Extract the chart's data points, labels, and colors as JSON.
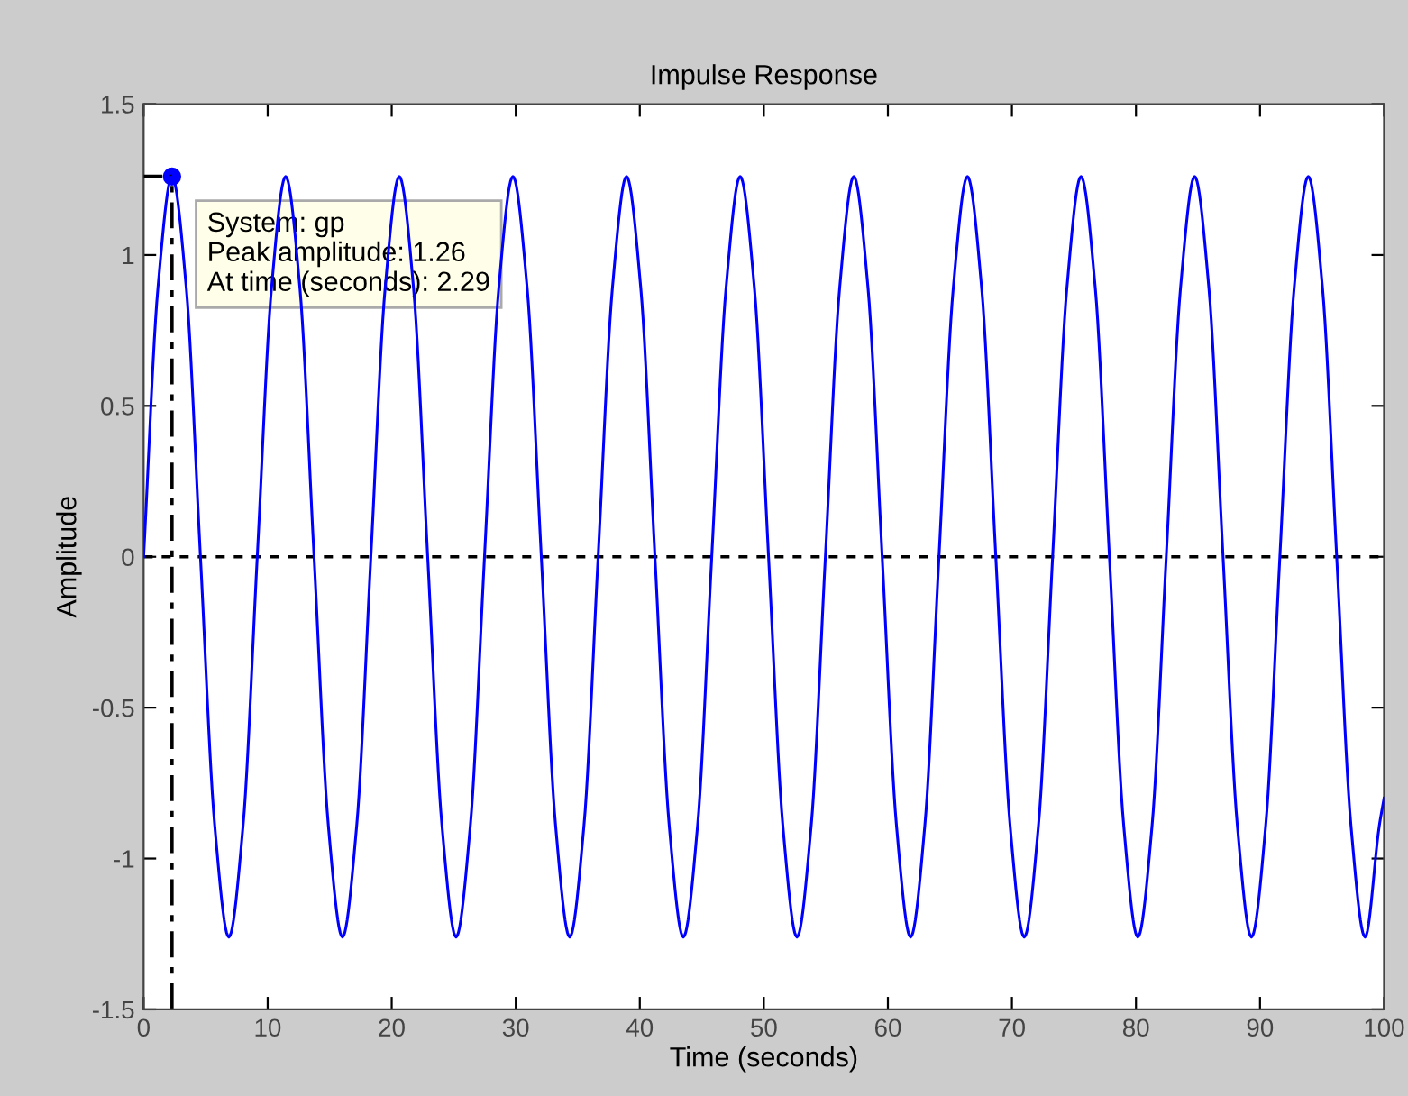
{
  "chart_data": {
    "type": "line",
    "title": "Impulse Response",
    "xlabel": "Time (seconds)",
    "ylabel": "Amplitude",
    "xlim": [
      0,
      100
    ],
    "xticks": [
      0,
      10,
      20,
      30,
      40,
      50,
      60,
      70,
      80,
      90,
      100
    ],
    "ylim": [
      -1.5,
      1.5
    ],
    "yticks": [
      -1.5,
      -1,
      -0.5,
      0,
      0.5,
      1,
      1.5
    ],
    "grid": false,
    "legend": false,
    "series": [
      {
        "color": "#0000ff",
        "x": [
          0,
          1.15,
          2.29,
          3.44,
          4.58,
          5.73,
          6.87,
          8.02,
          9.16,
          10.31,
          11.45,
          12.6,
          13.74,
          14.89,
          16.03,
          17.18,
          18.32,
          19.47,
          20.61,
          21.76,
          22.9,
          24.05,
          25.19,
          26.34,
          27.48,
          28.63,
          29.77,
          30.92,
          32.06,
          33.21,
          34.35,
          35.5,
          36.64,
          37.79,
          38.93,
          40.08,
          41.22,
          42.37,
          43.51,
          44.66,
          45.8,
          46.95,
          48.09,
          49.24,
          50.38,
          51.53,
          52.67,
          53.82,
          54.96,
          56.11,
          57.25,
          58.4,
          59.54,
          60.69,
          61.83,
          62.98,
          64.12,
          65.27,
          66.41,
          67.56,
          68.7,
          69.85,
          70.99,
          72.14,
          73.28,
          74.43,
          75.57,
          76.72,
          77.86,
          79.01,
          80.15,
          81.3,
          82.44,
          83.59,
          84.73,
          85.88,
          87.02,
          88.17,
          89.31,
          90.46,
          91.6,
          92.75,
          93.89,
          95.04,
          96.18,
          97.33,
          98.47,
          99.62,
          100
        ],
        "values": [
          0,
          0.89,
          1.26,
          0.89,
          0,
          -0.89,
          -1.26,
          -0.89,
          0,
          0.89,
          1.26,
          0.89,
          0,
          -0.89,
          -1.26,
          -0.89,
          0,
          0.89,
          1.26,
          0.89,
          0,
          -0.89,
          -1.26,
          -0.89,
          0,
          0.89,
          1.26,
          0.89,
          0,
          -0.89,
          -1.26,
          -0.89,
          0,
          0.89,
          1.26,
          0.89,
          0,
          -0.89,
          -1.26,
          -0.89,
          0,
          0.89,
          1.26,
          0.89,
          0,
          -0.89,
          -1.26,
          -0.89,
          0,
          0.89,
          1.26,
          0.89,
          0,
          -0.89,
          -1.26,
          -0.89,
          0,
          0.89,
          1.26,
          0.89,
          0,
          -0.89,
          -1.26,
          -0.89,
          0,
          0.89,
          1.26,
          0.89,
          0,
          -0.89,
          -1.26,
          -0.89,
          0,
          0.89,
          1.26,
          0.89,
          0,
          -0.89,
          -1.26,
          -0.89,
          0,
          0.89,
          1.26,
          0.89,
          0,
          -0.89,
          -1.26,
          -0.89,
          -0.8
        ],
        "marker": "none"
      },
      {
        "type": "scatter",
        "color": "#0000ff",
        "x": [
          2.29
        ],
        "values": [
          1.26
        ],
        "marker": "circle"
      }
    ],
    "ref_lines": [
      {
        "axis": "y",
        "value": 0,
        "color": "#000000",
        "line_style": "dashed"
      }
    ],
    "annotations": [
      {
        "text": "System: gp\nPeak amplitude: 1.26\nAt time (seconds): 2.29",
        "x": 2.29,
        "y": 1.26
      }
    ]
  }
}
